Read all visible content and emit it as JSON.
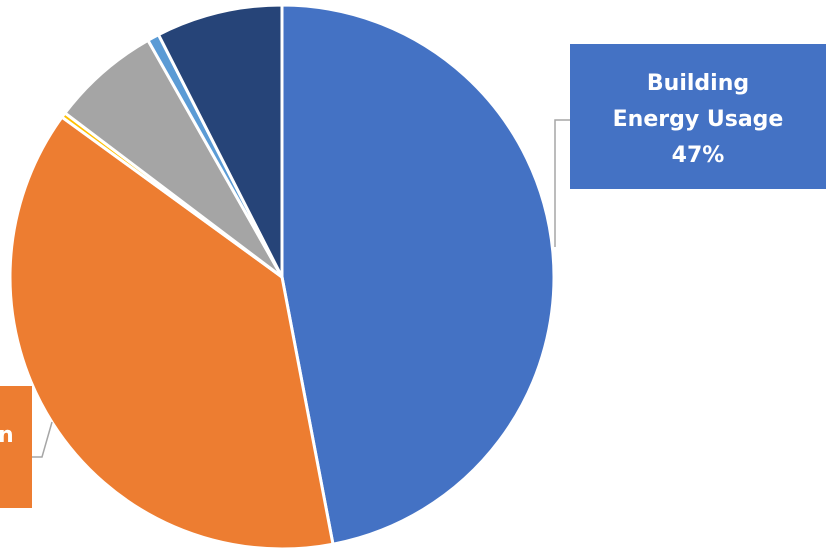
{
  "chart_data": {
    "type": "pie",
    "categories": [
      "Building Energy Usage",
      "",
      "",
      "",
      "",
      ""
    ],
    "values": [
      47,
      38,
      0.3,
      6.5,
      0.7,
      7.5
    ],
    "colors": [
      "#4472C4",
      "#ED7D31",
      "#FFC000",
      "#A5A5A5",
      "#5B9BD5",
      "#264478"
    ],
    "callouts": [
      {
        "lines": [
          "Building",
          "Energy Usage",
          "47%"
        ],
        "color": "#4472C4"
      },
      {
        "lines": [
          "n"
        ],
        "color": "#ED7D31"
      }
    ]
  }
}
